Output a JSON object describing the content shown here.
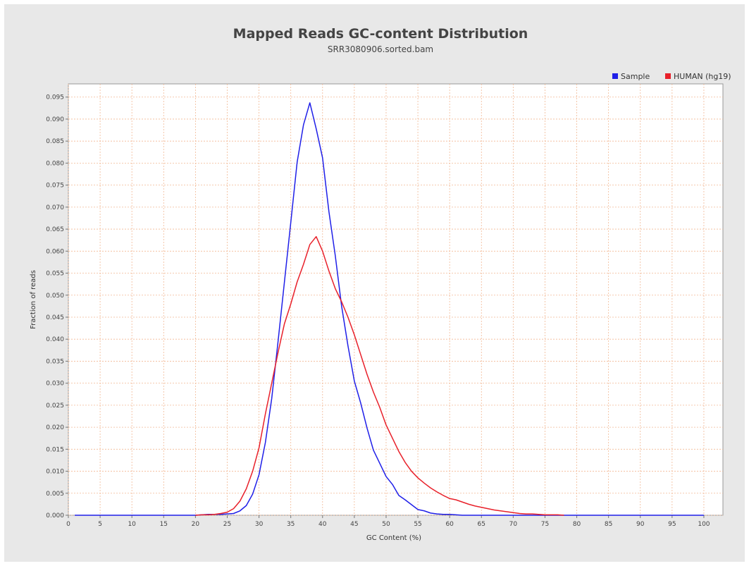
{
  "chart_data": {
    "type": "line",
    "title": "Mapped Reads GC-content Distribution",
    "subtitle": "SRR3080906.sorted.bam",
    "xlabel": "GC Content (%)",
    "ylabel": "Fraction of reads",
    "xlim": [
      0,
      103
    ],
    "ylim": [
      0,
      0.098
    ],
    "x_ticks": [
      0,
      5,
      10,
      15,
      20,
      25,
      30,
      35,
      40,
      45,
      50,
      55,
      60,
      65,
      70,
      75,
      80,
      85,
      90,
      95,
      100
    ],
    "y_ticks": [
      0.0,
      0.005,
      0.01,
      0.015,
      0.02,
      0.025,
      0.03,
      0.035,
      0.04,
      0.045,
      0.05,
      0.055,
      0.06,
      0.065,
      0.07,
      0.075,
      0.08,
      0.085,
      0.09,
      0.095
    ],
    "y_tick_labels": [
      "0.000",
      "0.005",
      "0.010",
      "0.015",
      "0.020",
      "0.025",
      "0.030",
      "0.035",
      "0.040",
      "0.045",
      "0.050",
      "0.055",
      "0.060",
      "0.065",
      "0.070",
      "0.075",
      "0.080",
      "0.085",
      "0.090",
      "0.095"
    ],
    "grid": true,
    "legend_position": "top-right",
    "series": [
      {
        "name": "Sample",
        "color": "#1f1fe8",
        "points": [
          [
            1,
            0
          ],
          [
            5,
            0
          ],
          [
            10,
            0
          ],
          [
            15,
            0
          ],
          [
            20,
            0
          ],
          [
            21,
            0.0001
          ],
          [
            22,
            0.0002
          ],
          [
            23,
            0.0002
          ],
          [
            24,
            0.0002
          ],
          [
            25,
            0.0003
          ],
          [
            26,
            0.0004
          ],
          [
            27,
            0.001
          ],
          [
            28,
            0.0022
          ],
          [
            29,
            0.0048
          ],
          [
            30,
            0.0092
          ],
          [
            31,
            0.0165
          ],
          [
            32,
            0.0265
          ],
          [
            33,
            0.0395
          ],
          [
            34,
            0.053
          ],
          [
            35,
            0.0665
          ],
          [
            36,
            0.0802
          ],
          [
            37,
            0.0887
          ],
          [
            38,
            0.0937
          ],
          [
            39,
            0.0878
          ],
          [
            40,
            0.0812
          ],
          [
            41,
            0.069
          ],
          [
            42,
            0.059
          ],
          [
            43,
            0.0475
          ],
          [
            44,
            0.0385
          ],
          [
            45,
            0.0305
          ],
          [
            46,
            0.0255
          ],
          [
            47,
            0.0198
          ],
          [
            48,
            0.0148
          ],
          [
            49,
            0.0118
          ],
          [
            50,
            0.0088
          ],
          [
            51,
            0.007
          ],
          [
            52,
            0.0045
          ],
          [
            53,
            0.0035
          ],
          [
            54,
            0.0024
          ],
          [
            55,
            0.0013
          ],
          [
            56,
            0.001
          ],
          [
            57,
            0.0005
          ],
          [
            58,
            0.0003
          ],
          [
            59,
            0.0002
          ],
          [
            60,
            0.0002
          ],
          [
            61,
            0.0001
          ],
          [
            62,
            0
          ],
          [
            65,
            0
          ],
          [
            70,
            0
          ],
          [
            75,
            0
          ],
          [
            80,
            0
          ],
          [
            85,
            0
          ],
          [
            90,
            0
          ],
          [
            95,
            0
          ],
          [
            100,
            0
          ]
        ]
      },
      {
        "name": "HUMAN (hg19)",
        "color": "#e8202a",
        "points": [
          [
            20,
            0
          ],
          [
            21,
            0.0001
          ],
          [
            22,
            0.0001
          ],
          [
            23,
            0.0002
          ],
          [
            24,
            0.0004
          ],
          [
            25,
            0.0007
          ],
          [
            26,
            0.0015
          ],
          [
            27,
            0.0032
          ],
          [
            28,
            0.006
          ],
          [
            29,
            0.01
          ],
          [
            30,
            0.0153
          ],
          [
            31,
            0.023
          ],
          [
            32,
            0.03
          ],
          [
            33,
            0.037
          ],
          [
            34,
            0.0435
          ],
          [
            35,
            0.048
          ],
          [
            36,
            0.053
          ],
          [
            37,
            0.057
          ],
          [
            38,
            0.0615
          ],
          [
            39,
            0.0633
          ],
          [
            40,
            0.06
          ],
          [
            41,
            0.0555
          ],
          [
            42,
            0.0515
          ],
          [
            43,
            0.0485
          ],
          [
            44,
            0.045
          ],
          [
            45,
            0.041
          ],
          [
            46,
            0.0365
          ],
          [
            47,
            0.032
          ],
          [
            48,
            0.028
          ],
          [
            49,
            0.0245
          ],
          [
            50,
            0.0205
          ],
          [
            51,
            0.0175
          ],
          [
            52,
            0.0145
          ],
          [
            53,
            0.012
          ],
          [
            54,
            0.01
          ],
          [
            55,
            0.0085
          ],
          [
            56,
            0.0073
          ],
          [
            57,
            0.0062
          ],
          [
            58,
            0.0053
          ],
          [
            59,
            0.0045
          ],
          [
            60,
            0.0038
          ],
          [
            61,
            0.0035
          ],
          [
            62,
            0.003
          ],
          [
            63,
            0.0025
          ],
          [
            64,
            0.0021
          ],
          [
            65,
            0.0018
          ],
          [
            66,
            0.0015
          ],
          [
            67,
            0.0012
          ],
          [
            68,
            0.001
          ],
          [
            69,
            0.0008
          ],
          [
            70,
            0.0006
          ],
          [
            71,
            0.0004
          ],
          [
            72,
            0.0003
          ],
          [
            73,
            0.0003
          ],
          [
            74,
            0.0002
          ],
          [
            75,
            0.0001
          ],
          [
            76,
            0.0001
          ],
          [
            77,
            0.0001
          ],
          [
            78,
            0
          ]
        ]
      }
    ]
  }
}
